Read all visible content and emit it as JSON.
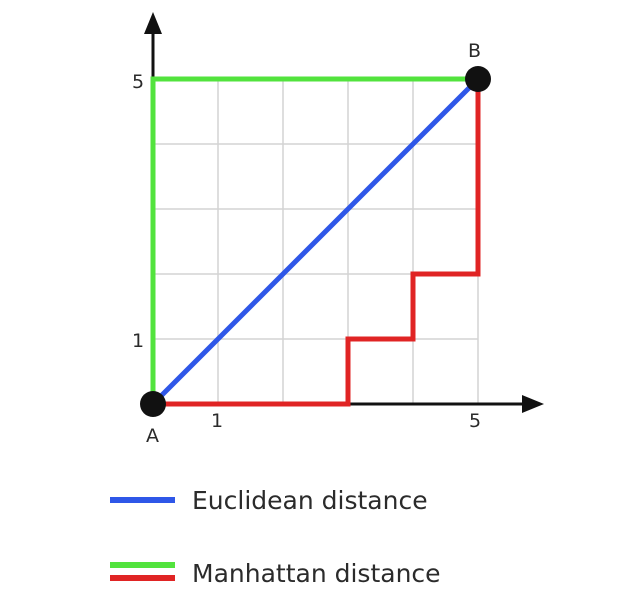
{
  "axes": {
    "x_ticks": [
      "1",
      "5"
    ],
    "y_ticks": [
      "1",
      "5"
    ]
  },
  "points": {
    "a": {
      "label": "A",
      "x": 0,
      "y": 0
    },
    "b": {
      "label": "B",
      "x": 5,
      "y": 5
    }
  },
  "grid": {
    "cells_x": 5,
    "cells_y": 5
  },
  "paths": {
    "euclidean": {
      "color": "#2f57e8",
      "points": [
        [
          0,
          0
        ],
        [
          5,
          5
        ]
      ]
    },
    "manhattan_green": {
      "color": "#52e33d",
      "points": [
        [
          0,
          0
        ],
        [
          0,
          5
        ],
        [
          5,
          5
        ]
      ]
    },
    "manhattan_red": {
      "color": "#e02424",
      "points": [
        [
          0,
          0
        ],
        [
          3,
          0
        ],
        [
          3,
          1
        ],
        [
          4,
          1
        ],
        [
          4,
          2
        ],
        [
          5,
          2
        ],
        [
          5,
          5
        ]
      ]
    }
  },
  "legend": {
    "euclidean": {
      "label": "Euclidean distance",
      "color": "#2f57e8"
    },
    "manhattan": {
      "label": "Manhattan distance",
      "colors": [
        "#52e33d",
        "#e02424"
      ]
    }
  }
}
